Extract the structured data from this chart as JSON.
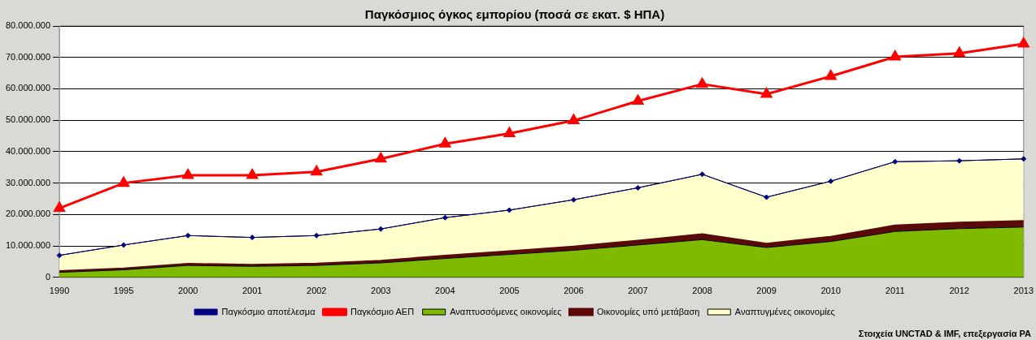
{
  "chart_data": {
    "type": "area",
    "title": "Παγκόσμιος όγκος εμπορίου (ποσά σε εκατ. $ ΗΠΑ)",
    "categories": [
      "1990",
      "1995",
      "2000",
      "2001",
      "2002",
      "2003",
      "2004",
      "2005",
      "2006",
      "2007",
      "2008",
      "2009",
      "2010",
      "2011",
      "2012",
      "2013"
    ],
    "stacked": true,
    "series": [
      {
        "name": "Αναπτυσσόμενες οικονομίες",
        "color": "#7fba00",
        "values": [
          1600000,
          2400000,
          3800000,
          3500000,
          3800000,
          4600000,
          6000000,
          7300000,
          8600000,
          10300000,
          12000000,
          9500000,
          11400000,
          14600000,
          15500000,
          16000000
        ]
      },
      {
        "name": "Οικονομίες υπό μετάβαση",
        "color": "#5a0a0a",
        "values": [
          300000,
          300000,
          400000,
          400000,
          500000,
          600000,
          800000,
          900000,
          1100000,
          1300000,
          1600000,
          1100000,
          1400000,
          1800000,
          1800000,
          1800000
        ]
      },
      {
        "name": "Αναπτυγμένες οικονομίες",
        "color": "#ffffcc",
        "values": [
          5100000,
          7600000,
          9100000,
          8800000,
          9000000,
          10200000,
          12200000,
          13200000,
          15000000,
          16900000,
          19200000,
          14900000,
          17800000,
          20400000,
          19800000,
          19900000
        ]
      },
      {
        "name": "Παγκόσμιο αποτέλεσμα",
        "type": "line",
        "color": "#000080",
        "marker": "diamond",
        "values": [
          7000000,
          10300000,
          13300000,
          12700000,
          13300000,
          15400000,
          19000000,
          21400000,
          24700000,
          28500000,
          32800000,
          25500000,
          30600000,
          36800000,
          37100000,
          37700000
        ]
      },
      {
        "name": "Παγκόσμιο ΑΕΠ",
        "type": "line",
        "color": "#ff0000",
        "marker": "triangle",
        "values": [
          22000000,
          30000000,
          32500000,
          32500000,
          33600000,
          37700000,
          42500000,
          45800000,
          49900000,
          56100000,
          61500000,
          58300000,
          64000000,
          70200000,
          71300000,
          74300000
        ]
      }
    ],
    "ylim": [
      0,
      80000000
    ],
    "yticks": [
      {
        "value": 0,
        "label": "0"
      },
      {
        "value": 10000000,
        "label": "10.000.000"
      },
      {
        "value": 20000000,
        "label": "20.000.000"
      },
      {
        "value": 30000000,
        "label": "30.000.000"
      },
      {
        "value": 40000000,
        "label": "40.000.000"
      },
      {
        "value": 50000000,
        "label": "50.000.000"
      },
      {
        "value": 60000000,
        "label": "60.000.000"
      },
      {
        "value": 70000000,
        "label": "70.000.000"
      },
      {
        "value": 80000000,
        "label": "80.000.000"
      }
    ],
    "grid": "y",
    "legend": "bottom",
    "annotations": [
      "Στοιχεία UNCTAD & IMF, επεξεργασία PA"
    ]
  }
}
